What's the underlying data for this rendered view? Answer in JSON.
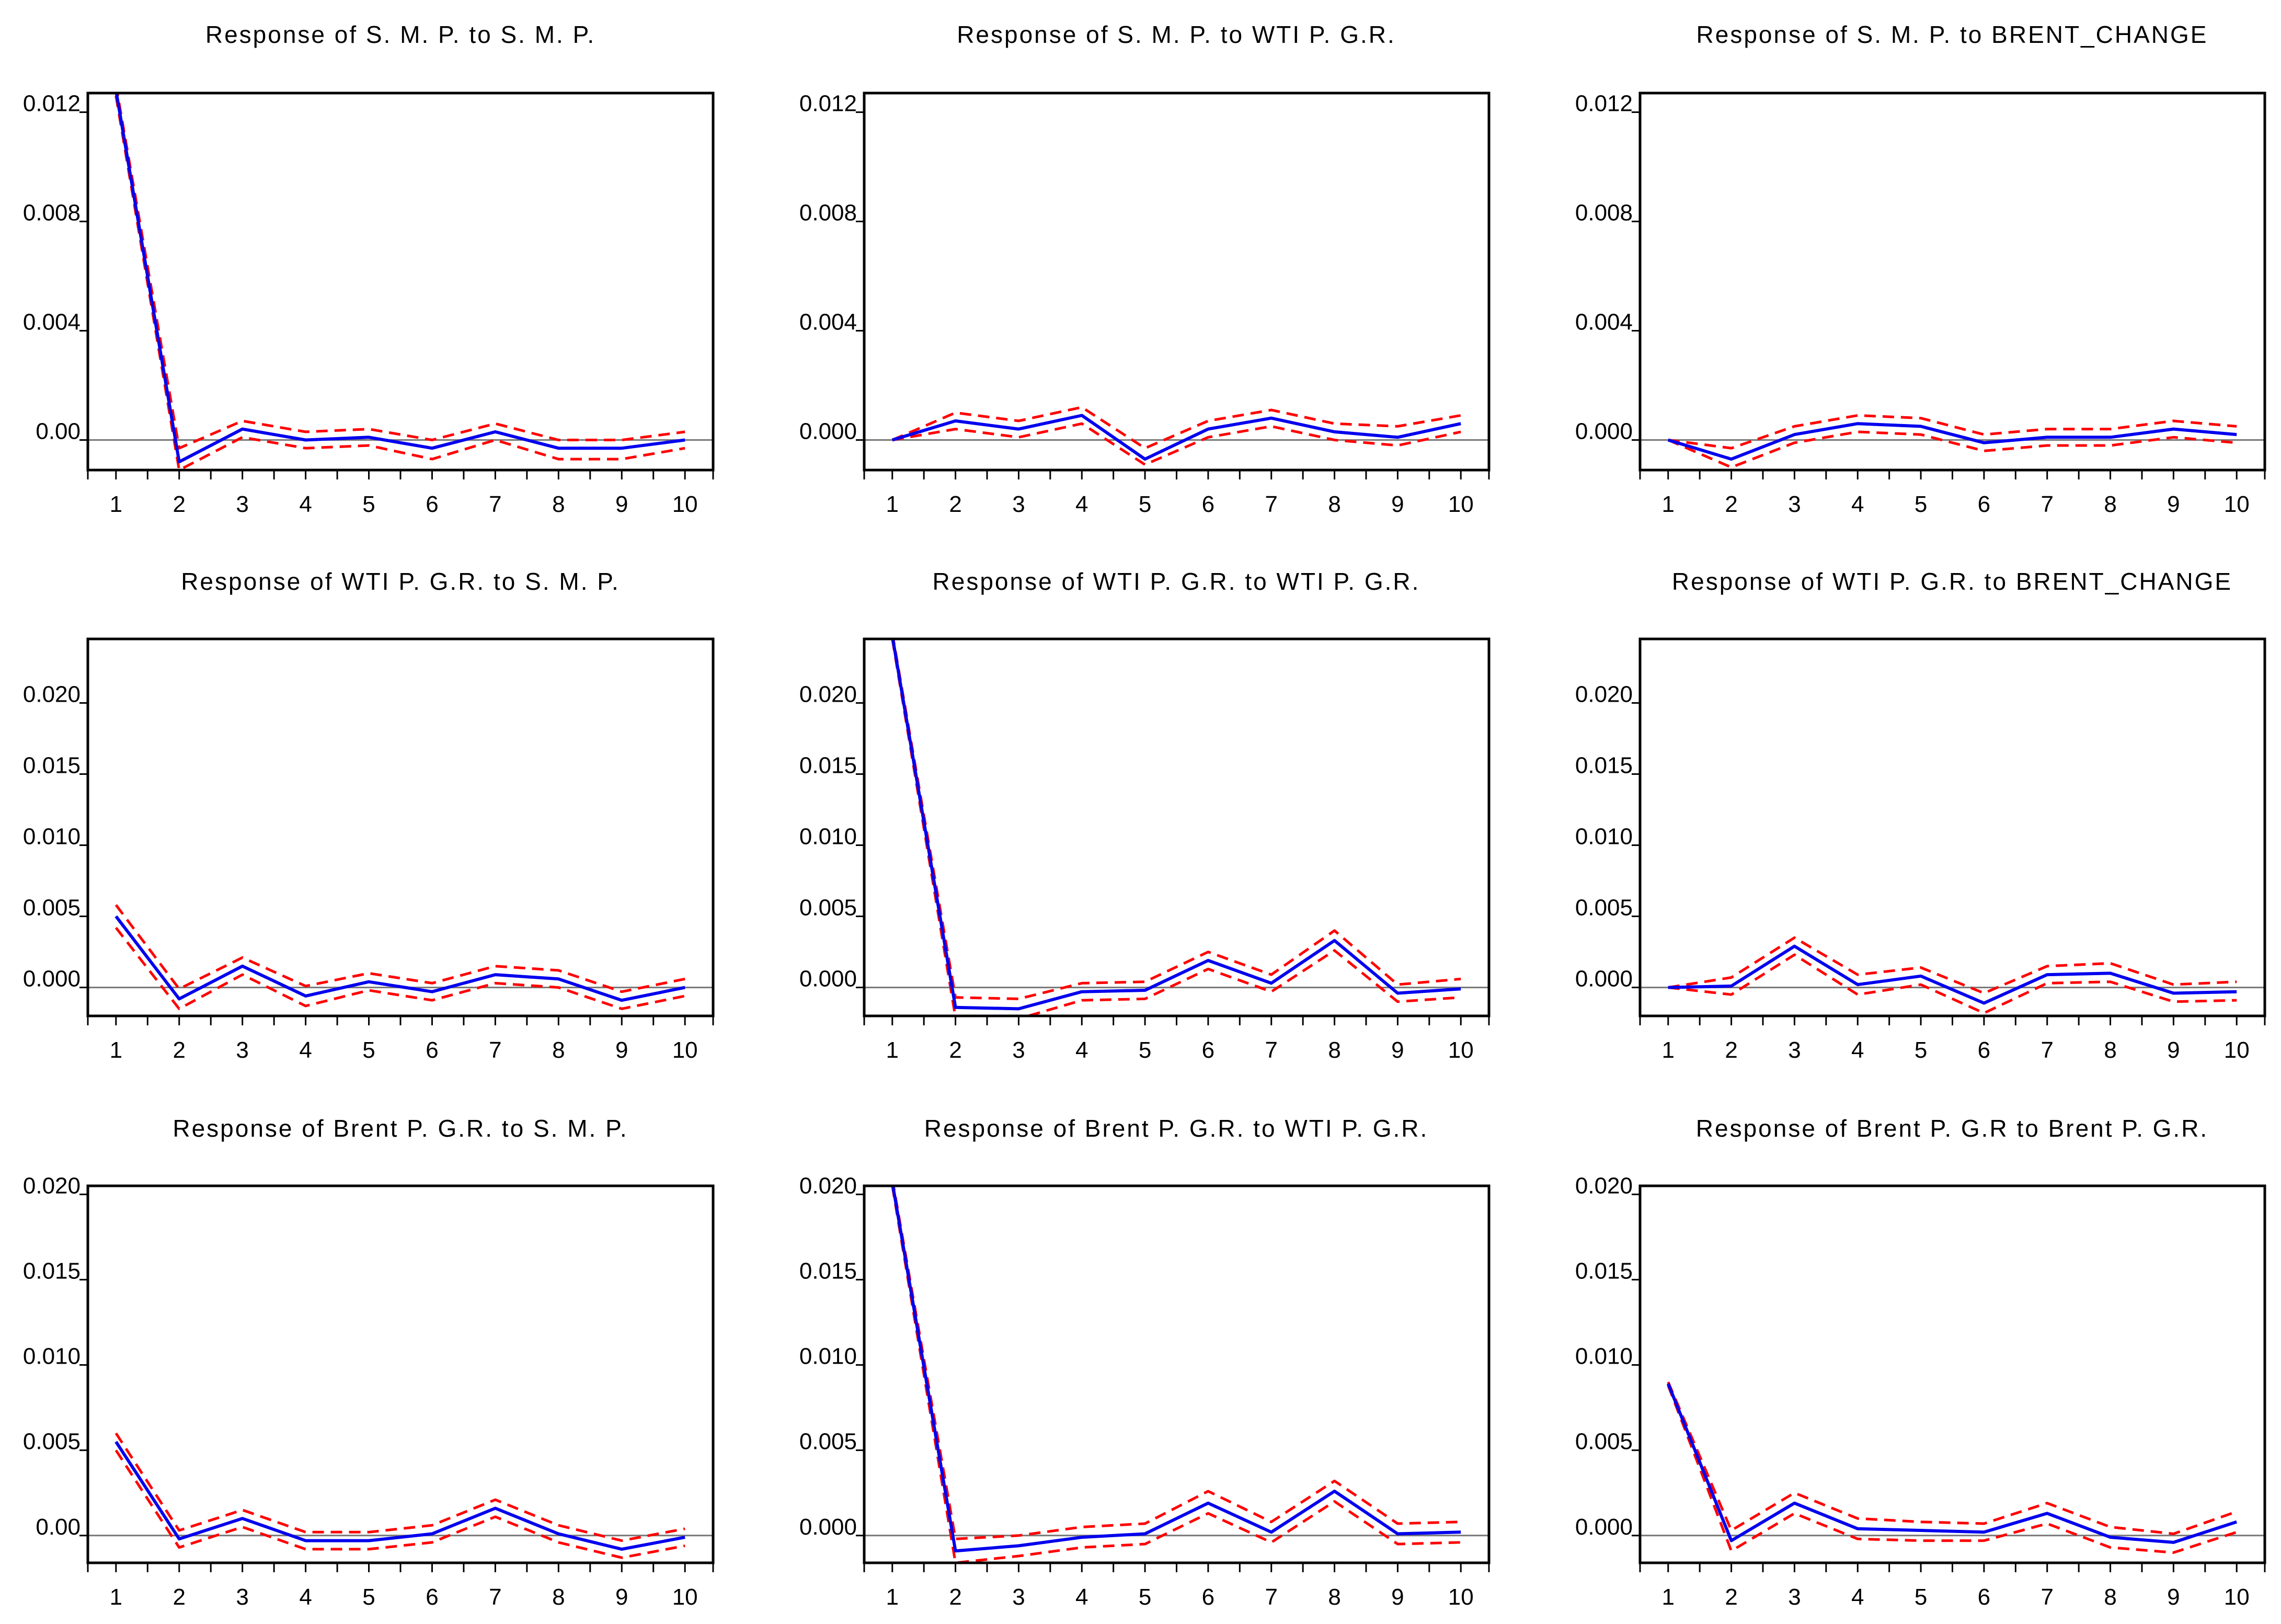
{
  "colors": {
    "response": "#0000ee",
    "band": "#ff0000",
    "zero_line": "#777777",
    "frame": "#000000",
    "background": "#ffffff"
  },
  "chart_data": [
    {
      "type": "line",
      "title": "Response of S. M. P. to S. M. P.",
      "x": [
        1,
        2,
        3,
        4,
        5,
        6,
        7,
        8,
        9,
        10
      ],
      "ylim": [
        -0.0011,
        0.0127
      ],
      "yticks": [
        "0.00",
        "0.004",
        "0.008",
        "0.012"
      ],
      "ytick_values": [
        0,
        0.004,
        0.008,
        0.012
      ],
      "series": [
        {
          "name": "Response",
          "style": "solid",
          "values": [
            0.0128,
            -0.0008,
            0.0004,
            0.0,
            0.0001,
            -0.0003,
            0.0003,
            -0.0003,
            -0.0003,
            0.0
          ]
        },
        {
          "name": "Upper band (+2 S.E.)",
          "style": "dashed",
          "values": [
            0.013,
            -0.0003,
            0.0007,
            0.0003,
            0.0004,
            0.0,
            0.0006,
            0.0,
            0.0,
            0.0003
          ]
        },
        {
          "name": "Lower band (-2 S.E.)",
          "style": "dashed",
          "values": [
            0.0126,
            -0.0011,
            0.0001,
            -0.0003,
            -0.0002,
            -0.0007,
            0.0,
            -0.0007,
            -0.0007,
            -0.0003
          ]
        }
      ]
    },
    {
      "type": "line",
      "title": "Response of S. M. P. to WTI P. G.R.",
      "x": [
        1,
        2,
        3,
        4,
        5,
        6,
        7,
        8,
        9,
        10
      ],
      "ylim": [
        -0.0011,
        0.0127
      ],
      "yticks": [
        "0.000",
        "0.004",
        "0.008",
        "0.012"
      ],
      "ytick_values": [
        0,
        0.004,
        0.008,
        0.012
      ],
      "series": [
        {
          "name": "Response",
          "style": "solid",
          "values": [
            0.0,
            0.0007,
            0.0004,
            0.0009,
            -0.0007,
            0.0004,
            0.0008,
            0.0003,
            0.0001,
            0.0006
          ]
        },
        {
          "name": "Upper band (+2 S.E.)",
          "style": "dashed",
          "values": [
            0.0,
            0.001,
            0.0007,
            0.0012,
            -0.0003,
            0.0007,
            0.0011,
            0.0006,
            0.0005,
            0.0009
          ]
        },
        {
          "name": "Lower band (-2 S.E.)",
          "style": "dashed",
          "values": [
            0.0,
            0.0004,
            0.0001,
            0.0006,
            -0.0009,
            0.0001,
            0.0005,
            0.0,
            -0.0002,
            0.0003
          ]
        }
      ]
    },
    {
      "type": "line",
      "title": "Response of S. M. P. to BRENT_CHANGE",
      "x": [
        1,
        2,
        3,
        4,
        5,
        6,
        7,
        8,
        9,
        10
      ],
      "ylim": [
        -0.0011,
        0.0127
      ],
      "yticks": [
        "0.000",
        "0.004",
        "0.008",
        "0.012"
      ],
      "ytick_values": [
        0,
        0.004,
        0.008,
        0.012
      ],
      "series": [
        {
          "name": "Response",
          "style": "solid",
          "values": [
            0.0,
            -0.0007,
            0.0002,
            0.0006,
            0.0005,
            -0.0001,
            0.0001,
            0.0001,
            0.0004,
            0.0002
          ]
        },
        {
          "name": "Upper band (+2 S.E.)",
          "style": "dashed",
          "values": [
            0.0,
            -0.0003,
            0.0005,
            0.0009,
            0.0008,
            0.0002,
            0.0004,
            0.0004,
            0.0007,
            0.0005
          ]
        },
        {
          "name": "Lower band (-2 S.E.)",
          "style": "dashed",
          "values": [
            0.0,
            -0.001,
            -0.0001,
            0.0003,
            0.0002,
            -0.0004,
            -0.0002,
            -0.0002,
            0.0001,
            -0.0001
          ]
        }
      ]
    },
    {
      "type": "line",
      "title": "Response of WTI P. G.R. to S. M. P.",
      "x": [
        1,
        2,
        3,
        4,
        5,
        6,
        7,
        8,
        9,
        10
      ],
      "ylim": [
        -0.002,
        0.0245
      ],
      "yticks": [
        "0.000",
        "0.005",
        "0.010",
        "0.015",
        "0.020"
      ],
      "ytick_values": [
        0,
        0.005,
        0.01,
        0.015,
        0.02
      ],
      "series": [
        {
          "name": "Response",
          "style": "solid",
          "values": [
            0.005,
            -0.0008,
            0.0015,
            -0.0006,
            0.0004,
            -0.0003,
            0.0009,
            0.0006,
            -0.0009,
            0.0
          ]
        },
        {
          "name": "Upper band (+2 S.E.)",
          "style": "dashed",
          "values": [
            0.0058,
            -0.0001,
            0.0021,
            0.0001,
            0.001,
            0.0003,
            0.0015,
            0.0012,
            -0.0003,
            0.0006
          ]
        },
        {
          "name": "Lower band (-2 S.E.)",
          "style": "dashed",
          "values": [
            0.0042,
            -0.0015,
            0.0009,
            -0.0013,
            -0.0002,
            -0.0009,
            0.0003,
            0.0,
            -0.0015,
            -0.0006
          ]
        }
      ]
    },
    {
      "type": "line",
      "title": "Response of WTI P. G.R. to WTI P. G.R.",
      "x": [
        1,
        2,
        3,
        4,
        5,
        6,
        7,
        8,
        9,
        10
      ],
      "ylim": [
        -0.002,
        0.0245
      ],
      "yticks": [
        "0.000",
        "0.005",
        "0.010",
        "0.015",
        "0.020"
      ],
      "ytick_values": [
        0,
        0.005,
        0.01,
        0.015,
        0.02
      ],
      "series": [
        {
          "name": "Response",
          "style": "solid",
          "values": [
            0.0247,
            -0.0014,
            -0.0015,
            -0.0003,
            -0.0002,
            0.0019,
            0.0003,
            0.0033,
            -0.0004,
            -0.0001
          ]
        },
        {
          "name": "Upper band (+2 S.E.)",
          "style": "dashed",
          "values": [
            0.0249,
            -0.0007,
            -0.0008,
            0.0003,
            0.0004,
            0.0025,
            0.0009,
            0.004,
            0.0002,
            0.0006
          ]
        },
        {
          "name": "Lower band (-2 S.E.)",
          "style": "dashed",
          "values": [
            0.0245,
            -0.0021,
            -0.0022,
            -0.0009,
            -0.0008,
            0.0013,
            -0.0003,
            0.0026,
            -0.001,
            -0.0007
          ]
        }
      ]
    },
    {
      "type": "line",
      "title": "Response of WTI P. G.R. to BRENT_CHANGE",
      "x": [
        1,
        2,
        3,
        4,
        5,
        6,
        7,
        8,
        9,
        10
      ],
      "ylim": [
        -0.002,
        0.0245
      ],
      "yticks": [
        "0.000",
        "0.005",
        "0.010",
        "0.015",
        "0.020"
      ],
      "ytick_values": [
        0,
        0.005,
        0.01,
        0.015,
        0.02
      ],
      "series": [
        {
          "name": "Response",
          "style": "solid",
          "values": [
            0.0,
            0.0001,
            0.0029,
            0.0002,
            0.0008,
            -0.0011,
            0.0009,
            0.001,
            -0.0004,
            -0.0003
          ]
        },
        {
          "name": "Upper band (+2 S.E.)",
          "style": "dashed",
          "values": [
            0.0,
            0.0007,
            0.0035,
            0.0009,
            0.0014,
            -0.0004,
            0.0015,
            0.0017,
            0.0002,
            0.0004
          ]
        },
        {
          "name": "Lower band (-2 S.E.)",
          "style": "dashed",
          "values": [
            0.0,
            -0.0005,
            0.0023,
            -0.0005,
            0.0002,
            -0.0018,
            0.0003,
            0.0004,
            -0.001,
            -0.0009
          ]
        }
      ]
    },
    {
      "type": "line",
      "title": "Response of Brent P. G.R. to S. M. P.",
      "x": [
        1,
        2,
        3,
        4,
        5,
        6,
        7,
        8,
        9,
        10
      ],
      "ylim": [
        -0.0016,
        0.0205
      ],
      "yticks": [
        "0.00",
        "0.005",
        "0.010",
        "0.015",
        "0.020"
      ],
      "ytick_values": [
        0,
        0.005,
        0.01,
        0.015,
        0.02
      ],
      "series": [
        {
          "name": "Response",
          "style": "solid",
          "values": [
            0.0055,
            -0.0002,
            0.001,
            -0.0003,
            -0.0003,
            0.0001,
            0.0016,
            0.0001,
            -0.0008,
            -0.0001
          ]
        },
        {
          "name": "Upper band (+2 S.E.)",
          "style": "dashed",
          "values": [
            0.006,
            0.0003,
            0.0015,
            0.0002,
            0.0002,
            0.0006,
            0.0021,
            0.0006,
            -0.0003,
            0.0004
          ]
        },
        {
          "name": "Lower band (-2 S.E.)",
          "style": "dashed",
          "values": [
            0.005,
            -0.0007,
            0.0005,
            -0.0008,
            -0.0008,
            -0.0004,
            0.0011,
            -0.0004,
            -0.0013,
            -0.0006
          ]
        }
      ]
    },
    {
      "type": "line",
      "title": "Response of Brent P. G.R. to WTI P. G.R.",
      "x": [
        1,
        2,
        3,
        4,
        5,
        6,
        7,
        8,
        9,
        10
      ],
      "ylim": [
        -0.0016,
        0.0205
      ],
      "yticks": [
        "0.000",
        "0.005",
        "0.010",
        "0.015",
        "0.020"
      ],
      "ytick_values": [
        0,
        0.005,
        0.01,
        0.015,
        0.02
      ],
      "series": [
        {
          "name": "Response",
          "style": "solid",
          "values": [
            0.0207,
            -0.0009,
            -0.0006,
            -0.0001,
            0.0001,
            0.0019,
            0.0002,
            0.0026,
            0.0001,
            0.0002
          ]
        },
        {
          "name": "Upper band (+2 S.E.)",
          "style": "dashed",
          "values": [
            0.0209,
            -0.0002,
            0.0,
            0.0005,
            0.0007,
            0.0026,
            0.0008,
            0.0032,
            0.0007,
            0.0008
          ]
        },
        {
          "name": "Lower band (-2 S.E.)",
          "style": "dashed",
          "values": [
            0.0205,
            -0.0016,
            -0.0012,
            -0.0007,
            -0.0005,
            0.0013,
            -0.0004,
            0.002,
            -0.0005,
            -0.0004
          ]
        }
      ]
    },
    {
      "type": "line",
      "title": "Response of Brent P. G.R to Brent P. G.R.",
      "x": [
        1,
        2,
        3,
        4,
        5,
        6,
        7,
        8,
        9,
        10
      ],
      "ylim": [
        -0.0016,
        0.0205
      ],
      "yticks": [
        "0.000",
        "0.005",
        "0.010",
        "0.015",
        "0.020"
      ],
      "ytick_values": [
        0,
        0.005,
        0.01,
        0.015,
        0.02
      ],
      "series": [
        {
          "name": "Response",
          "style": "solid",
          "values": [
            0.0089,
            -0.0003,
            0.0019,
            0.0004,
            0.0003,
            0.0002,
            0.0013,
            -0.0001,
            -0.0004,
            0.0008
          ]
        },
        {
          "name": "Upper band (+2 S.E.)",
          "style": "dashed",
          "values": [
            0.009,
            0.0003,
            0.0025,
            0.001,
            0.0008,
            0.0007,
            0.0019,
            0.0005,
            0.0001,
            0.0014
          ]
        },
        {
          "name": "Lower band (-2 S.E.)",
          "style": "dashed",
          "values": [
            0.0088,
            -0.0009,
            0.0013,
            -0.0002,
            -0.0003,
            -0.0003,
            0.0007,
            -0.0007,
            -0.001,
            0.0002
          ]
        }
      ]
    }
  ]
}
